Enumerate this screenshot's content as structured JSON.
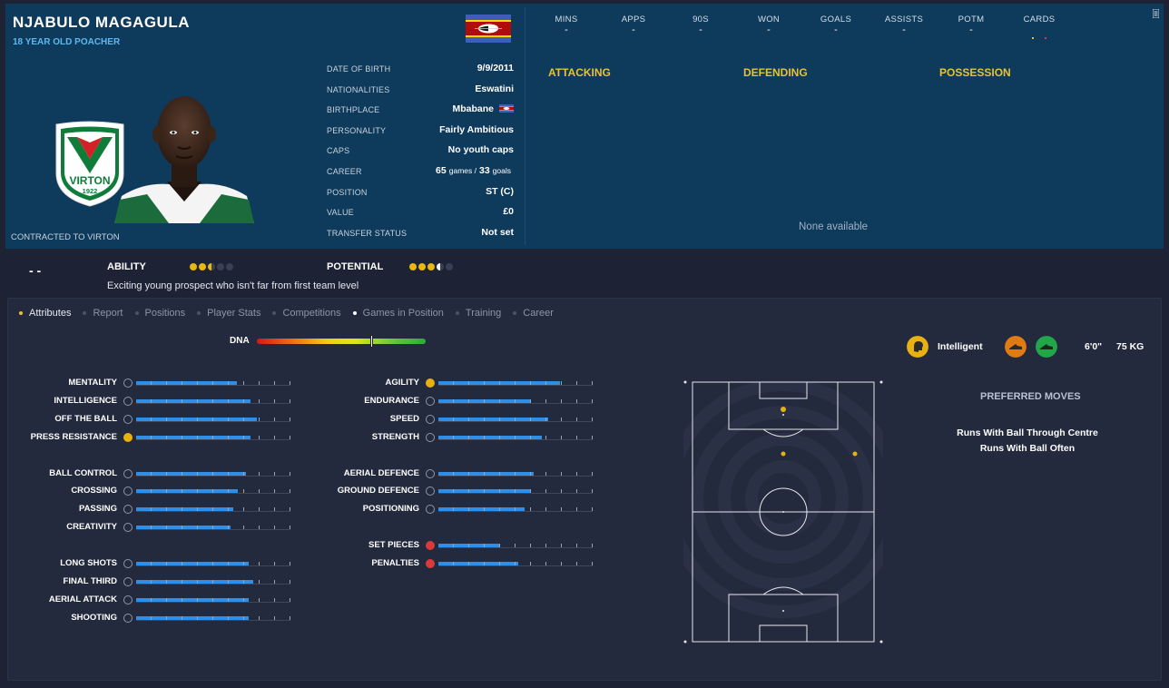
{
  "player": {
    "name": "NJABULO MAGAGULA",
    "subtitle": "18 YEAR OLD POACHER",
    "contracted": "CONTRACTED TO VIRTON",
    "club_badge_text": "VIRTON",
    "club_badge_year": "1922"
  },
  "info": [
    {
      "label": "DATE OF BIRTH",
      "value": "9/9/2011"
    },
    {
      "label": "NATIONALITIES",
      "value": "Eswatini"
    },
    {
      "label": "BIRTHPLACE",
      "value": "Mbabane"
    },
    {
      "label": "PERSONALITY",
      "value": "Fairly Ambitious"
    },
    {
      "label": "CAPS",
      "value": "No youth caps"
    },
    {
      "label": "CAREER",
      "games": "65",
      "games_label": "games /",
      "goals": "33",
      "goals_label": "goals"
    },
    {
      "label": "POSITION",
      "value": "ST (C)"
    },
    {
      "label": "VALUE",
      "value": "£0"
    },
    {
      "label": "TRANSFER STATUS",
      "value": "Not set"
    }
  ],
  "stats": [
    {
      "label": "MINS",
      "value": "-"
    },
    {
      "label": "APPS",
      "value": "-"
    },
    {
      "label": "90S",
      "value": "-"
    },
    {
      "label": "WON",
      "value": "-"
    },
    {
      "label": "GOALS",
      "value": "-"
    },
    {
      "label": "ASSISTS",
      "value": "-"
    },
    {
      "label": "POTM",
      "value": "-"
    },
    {
      "label": "CARDS",
      "value": ""
    }
  ],
  "sections": {
    "attacking": "ATTACKING",
    "defending": "DEFENDING",
    "possession": "POSSESSION",
    "none_available": "None available"
  },
  "ability": {
    "dash": "- -",
    "ability_label": "ABILITY",
    "ability_stars": 2.5,
    "potential_label": "POTENTIAL",
    "potential_stars": 3.5,
    "description": "Exciting young prospect who isn't far from first team level"
  },
  "tabs": [
    "Attributes",
    "Report",
    "Positions",
    "Player Stats",
    "Competitions",
    "Games in Position",
    "Training",
    "Career"
  ],
  "dna_label": "DNA",
  "dna_level": 0.68,
  "attributes_left": [
    [
      {
        "label": "MENTALITY",
        "value": 0.65
      },
      {
        "label": "INTELLIGENCE",
        "value": 0.74
      },
      {
        "label": "OFF THE BALL",
        "value": 0.78
      },
      {
        "label": "PRESS RESISTANCE",
        "value": 0.74,
        "icon": "gold"
      }
    ],
    [
      {
        "label": "BALL CONTROL",
        "value": 0.71
      },
      {
        "label": "CROSSING",
        "value": 0.66
      },
      {
        "label": "PASSING",
        "value": 0.63
      },
      {
        "label": "CREATIVITY",
        "value": 0.61
      }
    ],
    [
      {
        "label": "LONG SHOTS",
        "value": 0.73
      },
      {
        "label": "FINAL THIRD",
        "value": 0.76
      },
      {
        "label": "AERIAL ATTACK",
        "value": 0.73
      },
      {
        "label": "SHOOTING",
        "value": 0.73
      }
    ]
  ],
  "attributes_right": [
    [
      {
        "label": "AGILITY",
        "value": 0.79,
        "icon": "gold"
      },
      {
        "label": "ENDURANCE",
        "value": 0.6
      },
      {
        "label": "SPEED",
        "value": 0.71
      },
      {
        "label": "STRENGTH",
        "value": 0.67
      }
    ],
    [
      {
        "label": "AERIAL DEFENCE",
        "value": 0.62
      },
      {
        "label": "GROUND DEFENCE",
        "value": 0.6
      },
      {
        "label": "POSITIONING",
        "value": 0.56
      }
    ],
    [
      {
        "label": "SET PIECES",
        "value": 0.4,
        "icon": "red"
      },
      {
        "label": "PENALTIES",
        "value": 0.52,
        "icon": "red"
      }
    ]
  ],
  "traits": {
    "brain": "Intelligent",
    "height": "6'0\"",
    "weight": "75 KG"
  },
  "preferred": {
    "title": "PREFERRED MOVES",
    "moves": [
      "Runs With Ball Through Centre",
      "Runs With Ball Often"
    ]
  },
  "colors": {
    "header_bg": "#0e3a5c",
    "accent_yellow": "#e8c234",
    "bar_blue": "#2f8fe6",
    "page_bg": "#1d2235"
  }
}
